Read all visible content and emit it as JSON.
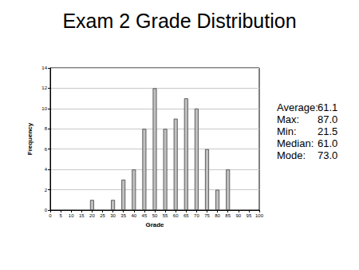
{
  "chart_data": {
    "type": "bar",
    "title": "Exam 2 Grade Distribution",
    "x_label": "Grade",
    "y_label": "Frequency",
    "x": [
      20,
      30,
      35,
      40,
      45,
      50,
      55,
      60,
      65,
      70,
      75,
      80,
      85
    ],
    "values": [
      1,
      1,
      3,
      4,
      8,
      12,
      8,
      9,
      11,
      10,
      6,
      2,
      4
    ],
    "color": "#c0c0c0",
    "xlim": [
      0,
      100
    ],
    "xticks": [
      0,
      5,
      10,
      15,
      20,
      25,
      30,
      35,
      40,
      45,
      50,
      55,
      60,
      65,
      70,
      75,
      80,
      85,
      90,
      95,
      100
    ],
    "ylim": [
      0,
      14
    ],
    "yticks": [
      0,
      2,
      4,
      6,
      8,
      10,
      12,
      14
    ],
    "grid": true,
    "annotations": [
      {
        "label": "Average:",
        "value": "61.1"
      },
      {
        "label": "Max:",
        "value": "87.0"
      },
      {
        "label": "Min:",
        "value": "21.5"
      },
      {
        "label": "Median:",
        "value": "61.0"
      },
      {
        "label": "Mode:",
        "value": "73.0"
      }
    ]
  }
}
